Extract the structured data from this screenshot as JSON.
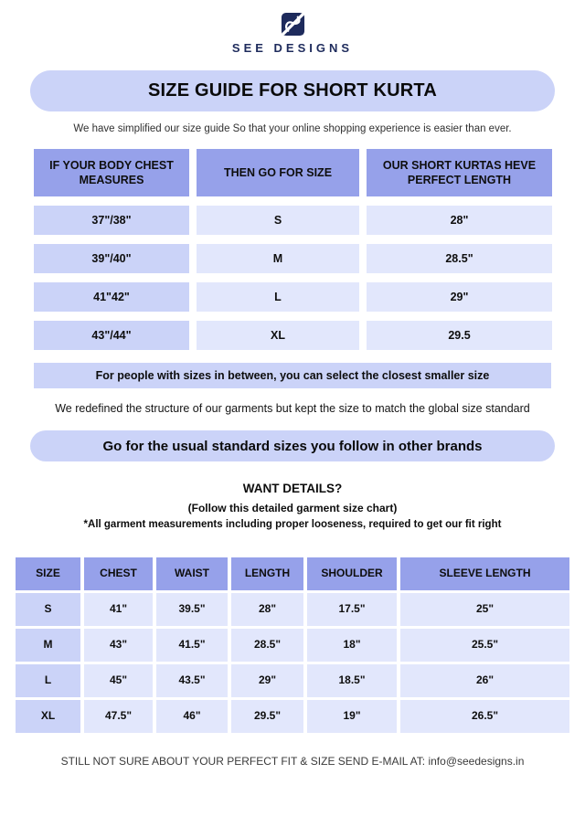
{
  "colors": {
    "navy": "#1E2B5C",
    "header_blue": "#96A1EA",
    "medium_lavender": "#CBD3F8",
    "light_lavender": "#E2E7FC"
  },
  "brand": {
    "name": "SEE DESIGNS"
  },
  "title_banner": "SIZE GUIDE FOR SHORT KURTA",
  "intro": "We have simplified our size guide So that your online shopping experience is easier than ever.",
  "size_table": {
    "headers": [
      "IF YOUR BODY CHEST MEASURES",
      "THEN GO FOR SIZE",
      "OUR SHORT KURTAS HEVE PERFECT LENGTH"
    ],
    "rows": [
      [
        "37\"/38\"",
        "S",
        "28\""
      ],
      [
        "39\"/40\"",
        "M",
        "28.5\""
      ],
      [
        "41\"42\"",
        "L",
        "29\""
      ],
      [
        "43\"/44\"",
        "XL",
        "29.5"
      ]
    ]
  },
  "between_note": "For people with sizes in between, you can select the closest smaller size",
  "redefined_note": "We redefined the structure of our garments but kept the size to match the global size standard",
  "standard_banner": "Go for the usual standard sizes you follow in other brands",
  "details": {
    "heading": "WANT DETAILS?",
    "sub": "(Follow this detailed garment size chart)",
    "note": "*All garment measurements including proper looseness, required to get our fit right"
  },
  "garment_table": {
    "headers": [
      "SIZE",
      "CHEST",
      "WAIST",
      "LENGTH",
      "SHOULDER",
      "SLEEVE LENGTH"
    ],
    "rows": [
      [
        "S",
        "41\"",
        "39.5\"",
        "28\"",
        "17.5\"",
        "25\""
      ],
      [
        "M",
        "43\"",
        "41.5\"",
        "28.5\"",
        "18\"",
        "25.5\""
      ],
      [
        "L",
        "45\"",
        "43.5\"",
        "29\"",
        "18.5\"",
        "26\""
      ],
      [
        "XL",
        "47.5\"",
        "46\"",
        "29.5\"",
        "19\"",
        "26.5\""
      ]
    ]
  },
  "footer": "STILL NOT SURE ABOUT YOUR PERFECT FIT & SIZE SEND E-MAIL AT: info@seedesigns.in"
}
